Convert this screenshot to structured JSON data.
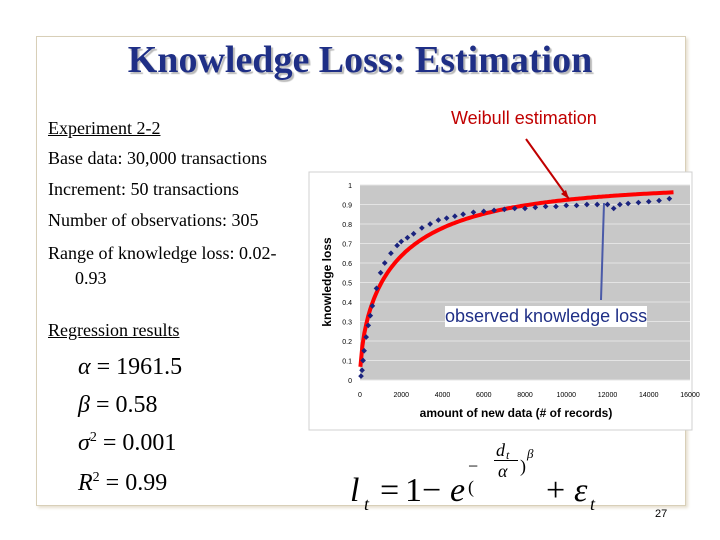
{
  "slide": {
    "title": "Knowledge Loss: Estimation",
    "page_number": "27"
  },
  "left": {
    "experiment": "Experiment 2-2",
    "base": "Base data: 30,000 transactions",
    "increment": "Increment: 50 transactions",
    "observations": "Number of observations: 305",
    "range_line1": "Range of knowledge loss: 0.02-",
    "range_line2": "0.93",
    "regression": "Regression results"
  },
  "results": {
    "alpha": {
      "symbol": "α",
      "value": "1961.5"
    },
    "beta": {
      "symbol": "β",
      "value": "0.58"
    },
    "sigma": {
      "symbol": "σ",
      "exp": "2",
      "value": "0.001"
    },
    "r2": {
      "symbol": "R",
      "exp": "2",
      "value": "0.99"
    }
  },
  "formula": {
    "lhs": "l",
    "lhs_sub": "t",
    "one": "1",
    "e": "e",
    "minus": "−(",
    "d": "d",
    "d_sub": "t",
    "alpha": "α",
    "close": ")",
    "beta": "β",
    "eps": "ε",
    "eps_sub": "t"
  },
  "annotations": {
    "weibull": "Weibull estimation",
    "observed": "observed knowledge loss"
  },
  "colors": {
    "title": "#1f2f86",
    "weibull": "#c00000",
    "observed": "#1f2f86",
    "plot_bg": "#c8c8c8",
    "fit_line": "#ff0000",
    "points": "#1a237e"
  },
  "chart_data": {
    "type": "scatter",
    "xlabel": "amount of new data (# of records)",
    "ylabel": "knowledge loss",
    "xlim": [
      0,
      16000
    ],
    "ylim": [
      0,
      1
    ],
    "x_ticks": [
      "0",
      "2000",
      "4000",
      "6000",
      "8000",
      "10000",
      "12000",
      "14000",
      "16000"
    ],
    "y_ticks": [
      "0",
      "0.1",
      "0.2",
      "0.3",
      "0.4",
      "0.5",
      "0.6",
      "0.7",
      "0.8",
      "0.9",
      "1"
    ],
    "grid": true,
    "fit": {
      "model": "weibull",
      "alpha": 1961.5,
      "beta": 0.58
    },
    "observed": {
      "x": [
        50,
        100,
        150,
        200,
        300,
        400,
        500,
        600,
        800,
        1000,
        1200,
        1500,
        1800,
        2000,
        2300,
        2600,
        3000,
        3400,
        3800,
        4200,
        4600,
        5000,
        5500,
        6000,
        6500,
        7000,
        7500,
        8000,
        8500,
        9000,
        9500,
        10000,
        10500,
        11000,
        11500,
        12000,
        12300,
        12600,
        13000,
        13500,
        14000,
        14500,
        15000
      ],
      "y": [
        0.02,
        0.05,
        0.1,
        0.15,
        0.22,
        0.28,
        0.33,
        0.38,
        0.47,
        0.55,
        0.6,
        0.65,
        0.69,
        0.71,
        0.73,
        0.75,
        0.78,
        0.8,
        0.82,
        0.83,
        0.84,
        0.85,
        0.86,
        0.865,
        0.87,
        0.875,
        0.88,
        0.88,
        0.885,
        0.89,
        0.89,
        0.895,
        0.895,
        0.9,
        0.9,
        0.9,
        0.88,
        0.9,
        0.905,
        0.91,
        0.915,
        0.92,
        0.93
      ]
    }
  }
}
